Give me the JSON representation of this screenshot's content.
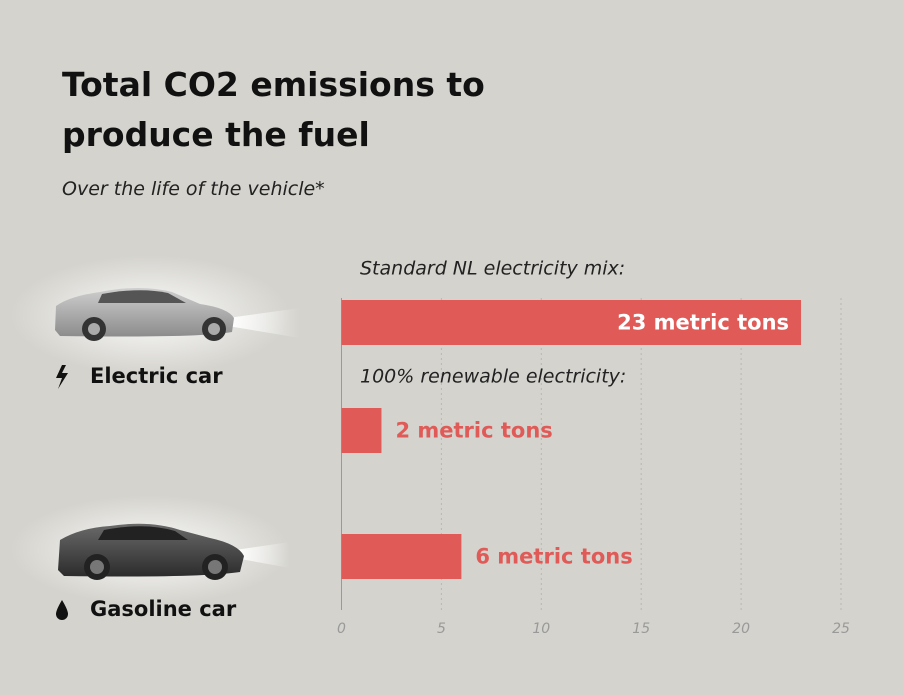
{
  "chart_data": {
    "type": "hbar",
    "title": "Total CO2 emissions to produce the fuel",
    "subtitle": "Over the life of the vehicle*",
    "groups": [
      "Electric car",
      "Gasoline car"
    ],
    "categories": [
      "Standard NL electricity mix:",
      "100% renewable electricity:",
      null
    ],
    "values": [
      23,
      2,
      6
    ],
    "value_labels": [
      "23 metric tons",
      "2 metric tons",
      "6 metric tons"
    ],
    "color": "#e05a57",
    "xlim": [
      0,
      25
    ],
    "xticks": [
      0,
      5,
      10,
      15,
      20,
      25
    ],
    "grid": true
  }
}
